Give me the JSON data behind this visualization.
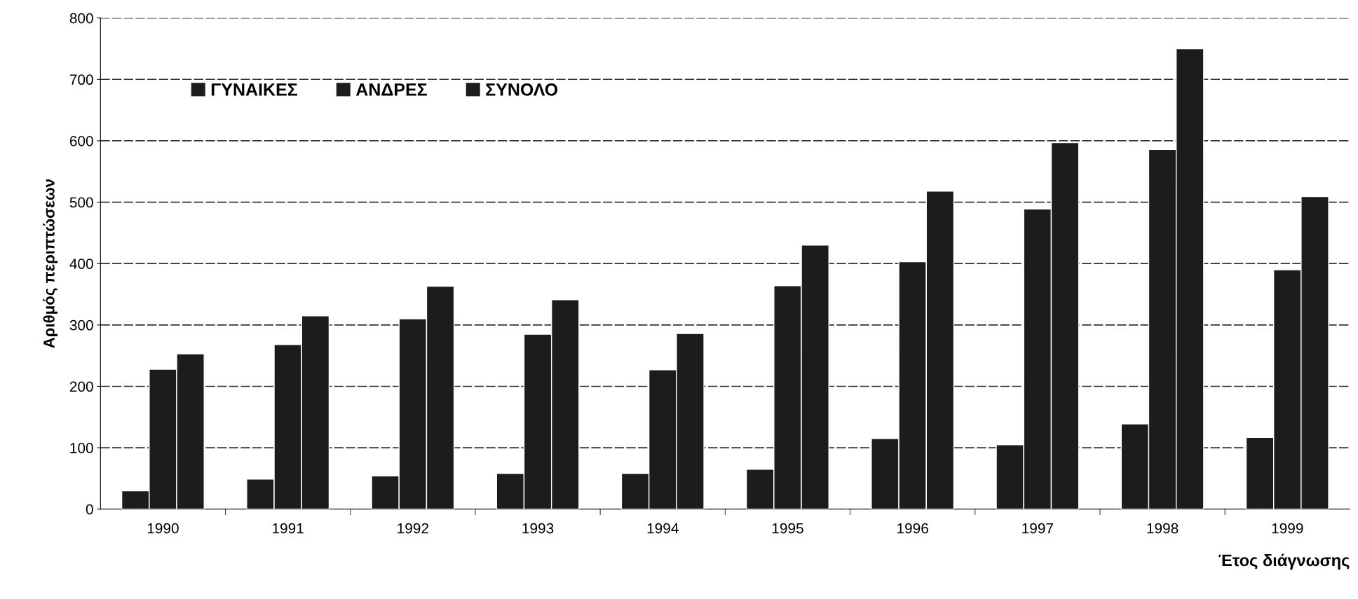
{
  "chart_data": {
    "type": "bar",
    "xlabel": "Έτος διάγνωσης",
    "ylabel": "Αριθμός περιπτώσεων",
    "categories": [
      "1990",
      "1991",
      "1992",
      "1993",
      "1994",
      "1995",
      "1996",
      "1997",
      "1998",
      "1999"
    ],
    "series": [
      {
        "name": "ΓΥΝΑΙΚΕΣ",
        "color": "#1c1c1c",
        "values": [
          30,
          49,
          54,
          58,
          58,
          65,
          115,
          105,
          139,
          117
        ]
      },
      {
        "name": "ΑΝΔΡΕΣ",
        "color": "#1c1c1c",
        "values": [
          228,
          268,
          310,
          285,
          227,
          364,
          403,
          489,
          586,
          390
        ]
      },
      {
        "name": "ΣΥΝΟΛΟ",
        "color": "#1c1c1c",
        "values": [
          253,
          315,
          363,
          341,
          286,
          430,
          518,
          597,
          750,
          509
        ]
      }
    ],
    "ylim": [
      0,
      800
    ],
    "yticks": [
      0,
      100,
      200,
      300,
      400,
      500,
      600,
      700,
      800
    ],
    "grid": "y",
    "legend": "top left"
  }
}
